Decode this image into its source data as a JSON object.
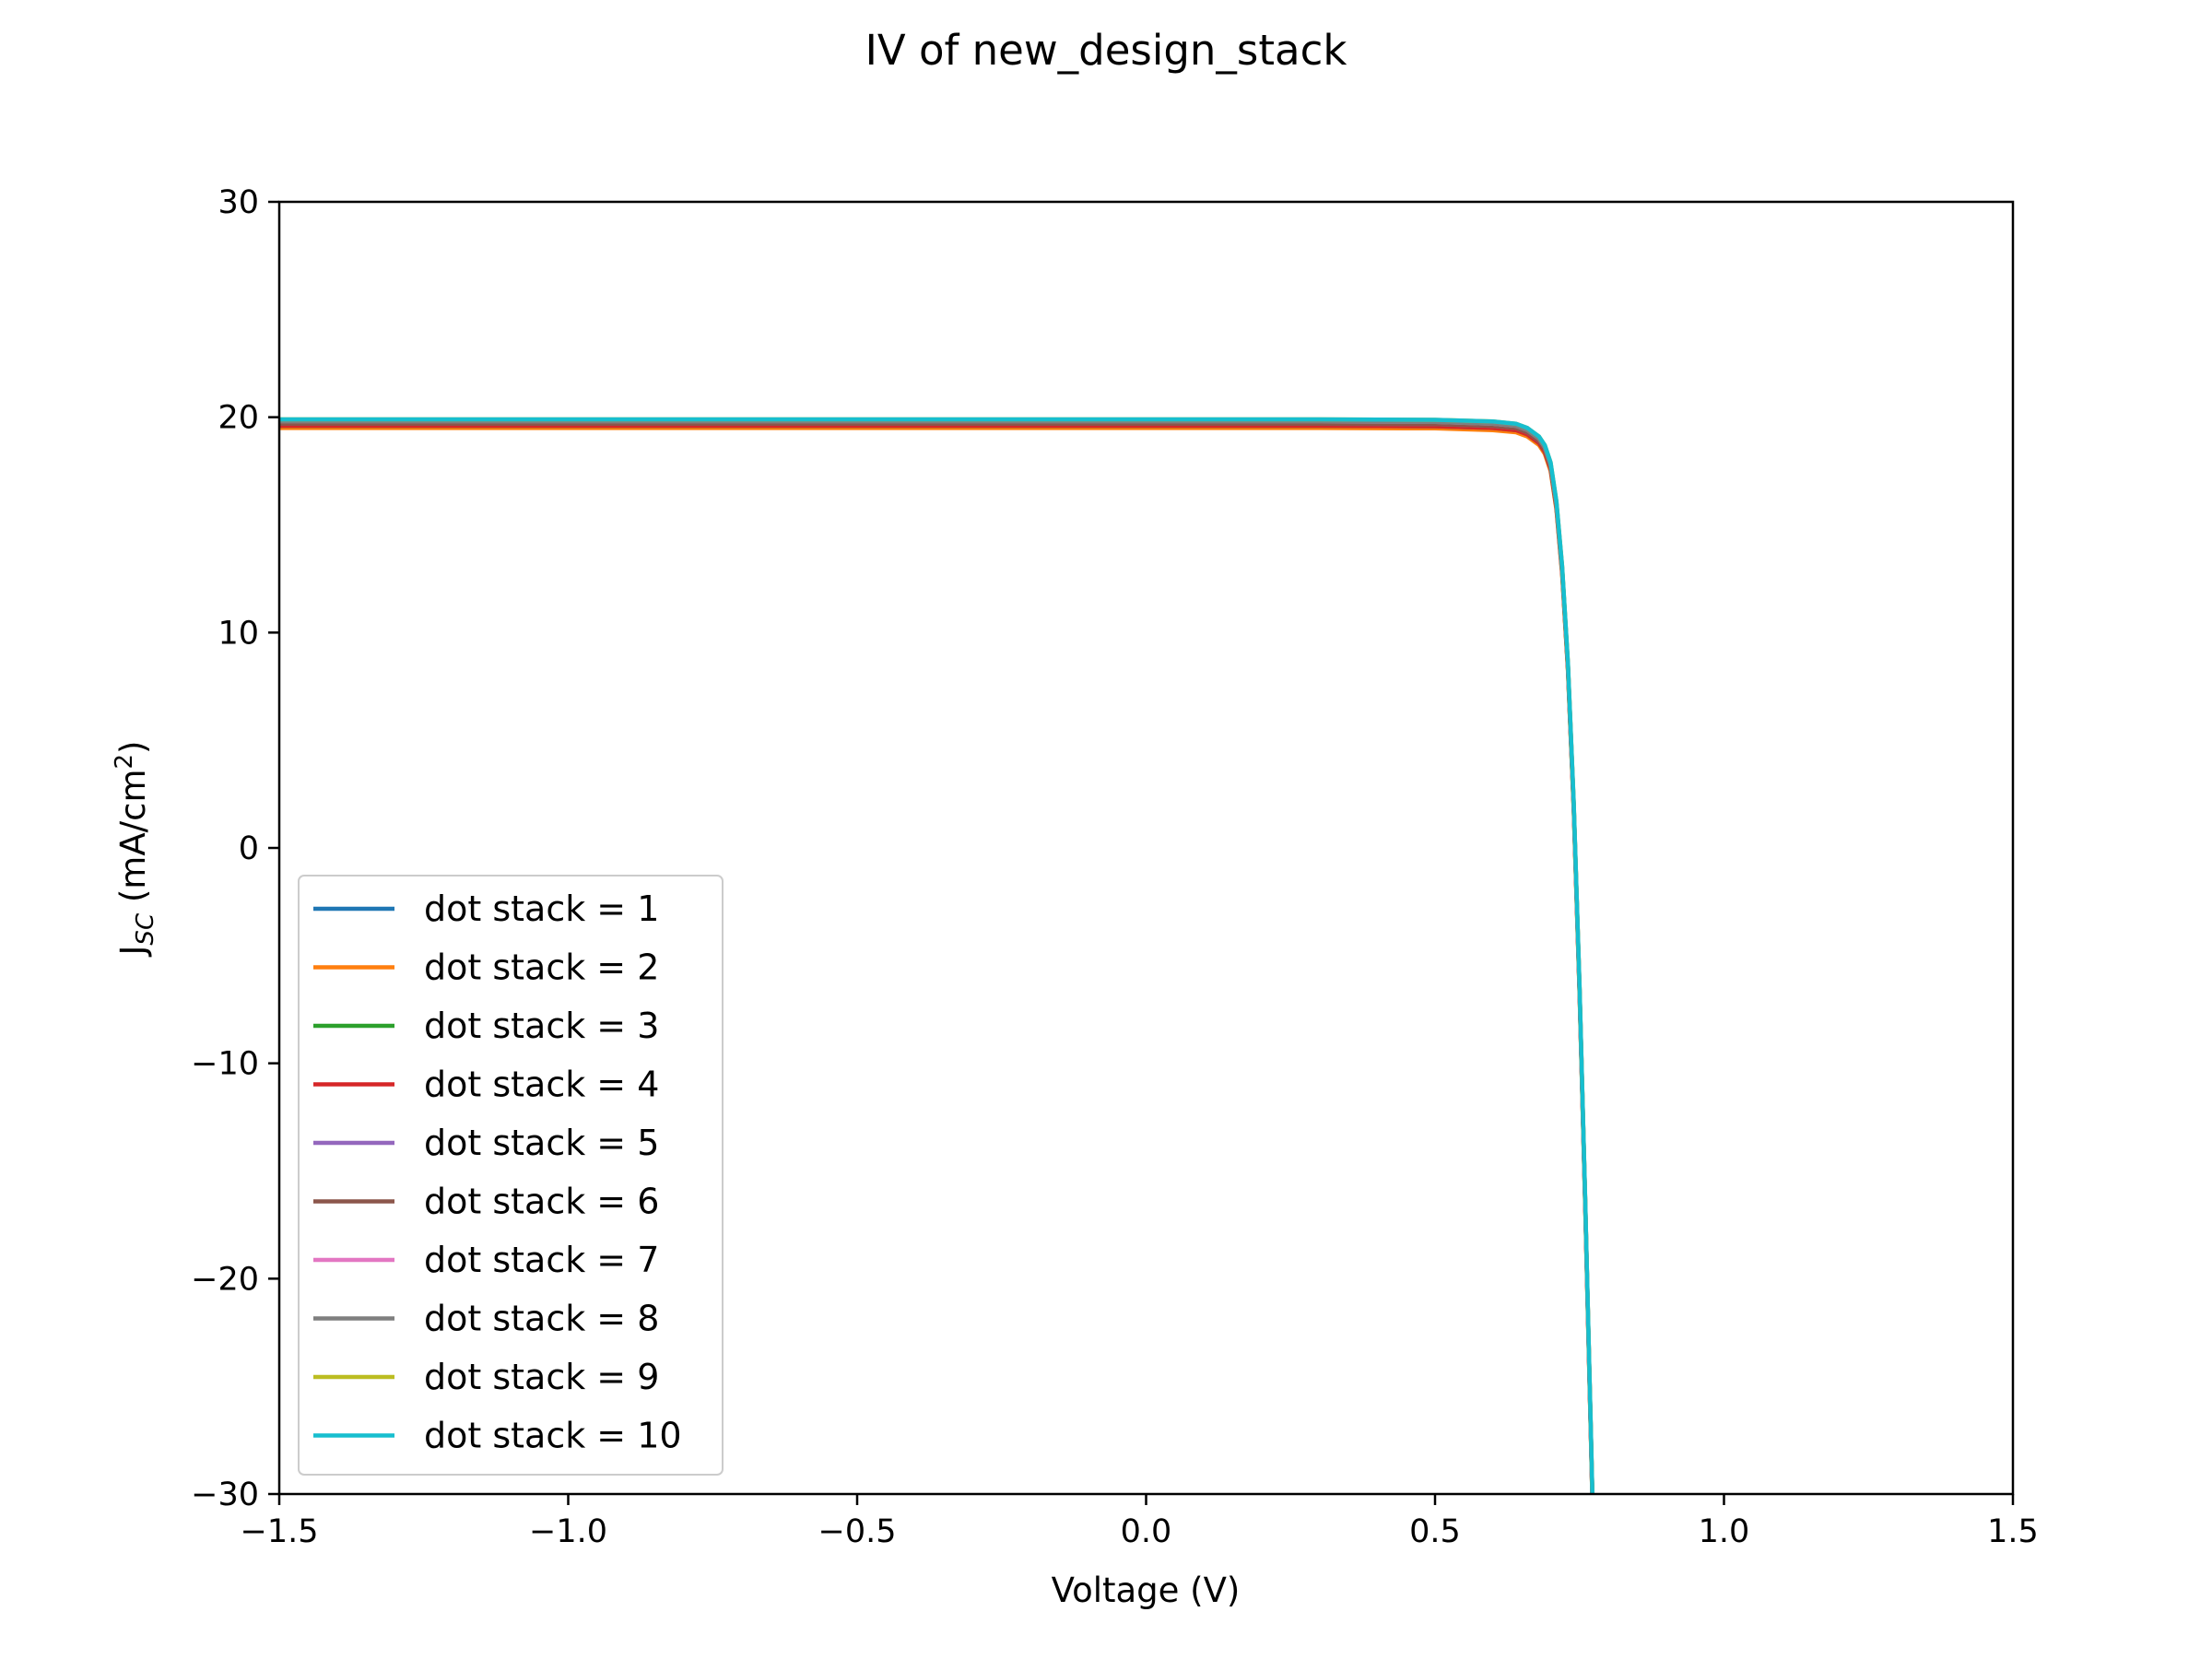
{
  "chart_data": {
    "type": "line",
    "title": "IV of new_design_stack",
    "xlabel": "Voltage (V)",
    "ylabel": {
      "main": "J",
      "subscript": "SC",
      "unit_open": " (mA/cm",
      "superscript": "2",
      "unit_close": ")"
    },
    "xlim": [
      -1.5,
      1.5
    ],
    "ylim": [
      -30,
      30
    ],
    "x_ticks": [
      -1.5,
      -1.0,
      -0.5,
      0.0,
      0.5,
      1.0,
      1.5
    ],
    "x_tick_labels": [
      "−1.5",
      "−1.0",
      "−0.5",
      "0.0",
      "0.5",
      "1.0",
      "1.5"
    ],
    "y_ticks": [
      -30,
      -20,
      -10,
      0,
      10,
      20,
      30
    ],
    "y_tick_labels": [
      "−30",
      "−20",
      "−10",
      "0",
      "10",
      "20",
      "30"
    ],
    "grid": false,
    "legend_position": "lower-left",
    "x": [
      -1.5,
      -1.0,
      -0.5,
      0.0,
      0.3,
      0.5,
      0.6,
      0.64,
      0.66,
      0.68,
      0.69,
      0.7,
      0.71,
      0.72,
      0.73,
      0.74,
      0.75,
      0.76,
      0.77,
      0.78
    ],
    "series": [
      {
        "name": "dot stack = 1",
        "color": "#1f77b4",
        "values": [
          19.8,
          19.8,
          19.8,
          19.8,
          19.8,
          19.78,
          19.7,
          19.6,
          19.4,
          19.0,
          18.6,
          17.8,
          16.0,
          13.0,
          8.5,
          2.0,
          -6.5,
          -16.5,
          -27.5,
          -39.0
        ]
      },
      {
        "name": "dot stack = 2",
        "color": "#ff7f0e",
        "values": [
          19.5,
          19.5,
          19.5,
          19.5,
          19.5,
          19.48,
          19.4,
          19.3,
          19.1,
          18.7,
          18.3,
          17.5,
          15.7,
          12.7,
          8.2,
          1.7,
          -6.8,
          -16.8,
          -27.8,
          -39.3
        ]
      },
      {
        "name": "dot stack = 3",
        "color": "#2ca02c",
        "values": [
          19.6,
          19.6,
          19.6,
          19.6,
          19.6,
          19.58,
          19.5,
          19.4,
          19.2,
          18.8,
          18.4,
          17.6,
          15.8,
          12.8,
          8.3,
          1.8,
          -6.7,
          -16.7,
          -27.7,
          -39.2
        ]
      },
      {
        "name": "dot stack = 4",
        "color": "#d62728",
        "values": [
          19.6,
          19.6,
          19.6,
          19.6,
          19.6,
          19.58,
          19.5,
          19.4,
          19.2,
          18.8,
          18.4,
          17.6,
          15.8,
          12.8,
          8.3,
          1.8,
          -6.7,
          -16.7,
          -27.7,
          -39.2
        ]
      },
      {
        "name": "dot stack = 5",
        "color": "#9467bd",
        "values": [
          19.7,
          19.7,
          19.7,
          19.7,
          19.7,
          19.68,
          19.6,
          19.5,
          19.3,
          18.9,
          18.5,
          17.7,
          15.9,
          12.9,
          8.4,
          1.9,
          -6.6,
          -16.6,
          -27.6,
          -39.1
        ]
      },
      {
        "name": "dot stack = 6",
        "color": "#8c564b",
        "values": [
          19.7,
          19.7,
          19.7,
          19.7,
          19.7,
          19.68,
          19.6,
          19.5,
          19.3,
          18.9,
          18.5,
          17.7,
          15.9,
          12.9,
          8.4,
          1.9,
          -6.6,
          -16.6,
          -27.6,
          -39.1
        ]
      },
      {
        "name": "dot stack = 7",
        "color": "#e377c2",
        "values": [
          19.8,
          19.8,
          19.8,
          19.8,
          19.8,
          19.78,
          19.7,
          19.6,
          19.4,
          19.0,
          18.6,
          17.8,
          16.0,
          13.0,
          8.5,
          2.0,
          -6.5,
          -16.5,
          -27.5,
          -39.0
        ]
      },
      {
        "name": "dot stack = 8",
        "color": "#7f7f7f",
        "values": [
          19.8,
          19.8,
          19.8,
          19.8,
          19.8,
          19.78,
          19.7,
          19.6,
          19.4,
          19.0,
          18.6,
          17.8,
          16.0,
          13.0,
          8.5,
          2.0,
          -6.5,
          -16.5,
          -27.5,
          -39.0
        ]
      },
      {
        "name": "dot stack = 9",
        "color": "#bcbd22",
        "values": [
          19.9,
          19.9,
          19.9,
          19.9,
          19.9,
          19.88,
          19.8,
          19.7,
          19.5,
          19.1,
          18.7,
          17.9,
          16.1,
          13.1,
          8.6,
          2.1,
          -6.4,
          -16.4,
          -27.4,
          -38.9
        ]
      },
      {
        "name": "dot stack = 10",
        "color": "#17becf",
        "values": [
          19.9,
          19.9,
          19.9,
          19.9,
          19.9,
          19.88,
          19.8,
          19.7,
          19.5,
          19.1,
          18.7,
          17.9,
          16.1,
          13.1,
          8.6,
          2.1,
          -6.4,
          -16.4,
          -27.4,
          -38.9
        ]
      }
    ]
  }
}
